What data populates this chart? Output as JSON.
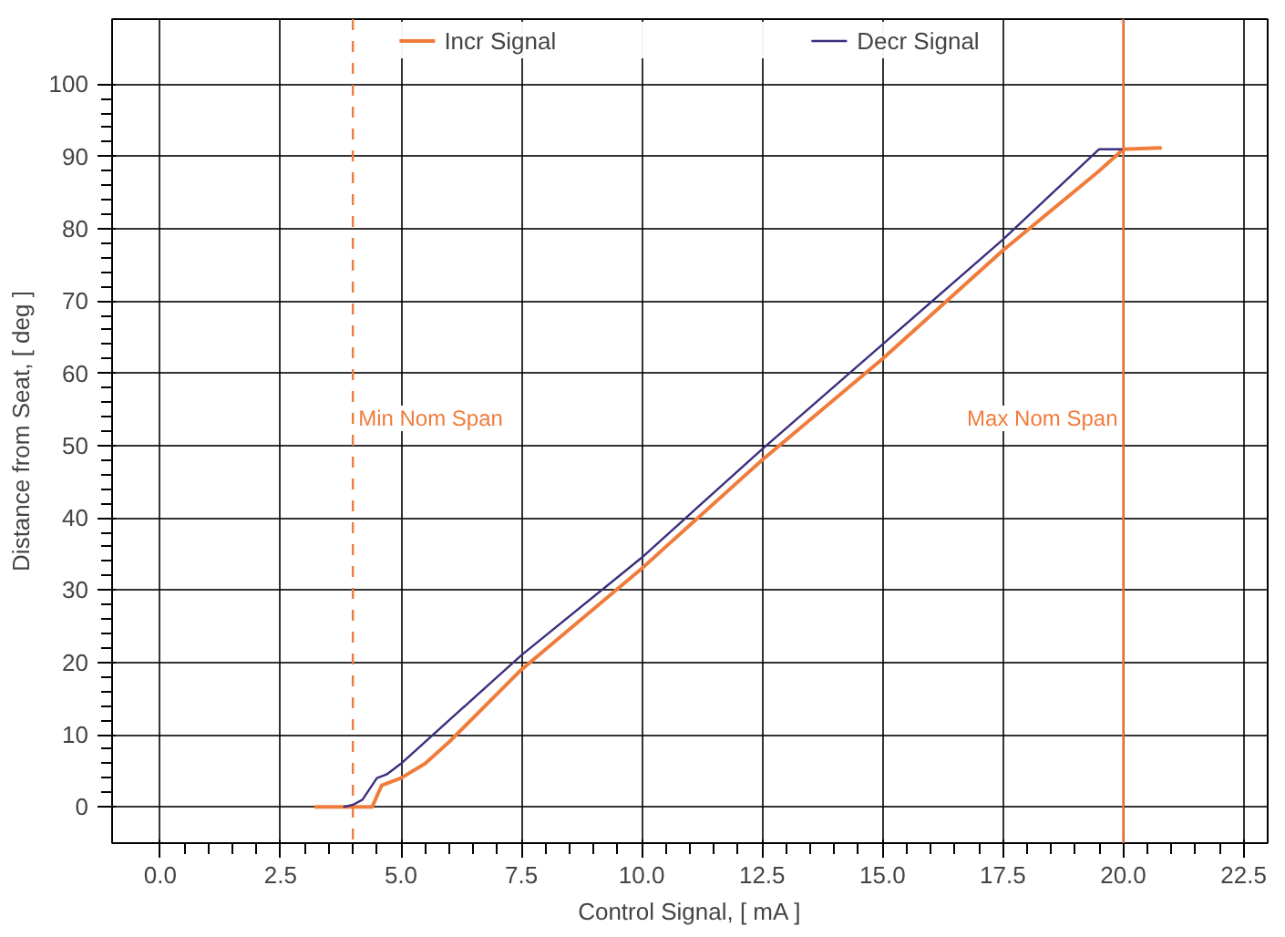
{
  "chart_data": {
    "type": "line",
    "xlabel": "Control Signal, [ mA ]",
    "ylabel": "Distance from Seat, [ deg ]",
    "xlim": [
      -1,
      23
    ],
    "ylim": [
      -5,
      109
    ],
    "xticks": [
      {
        "value": 0,
        "label": "0.0"
      },
      {
        "value": 2.5,
        "label": "2.5"
      },
      {
        "value": 5,
        "label": "5.0"
      },
      {
        "value": 7.5,
        "label": "7.5"
      },
      {
        "value": 10,
        "label": "10.0"
      },
      {
        "value": 12.5,
        "label": "12.5"
      },
      {
        "value": 15,
        "label": "15.0"
      },
      {
        "value": 17.5,
        "label": "17.5"
      },
      {
        "value": 20,
        "label": "20.0"
      },
      {
        "value": 22.5,
        "label": "22.5"
      }
    ],
    "yticks": [
      0,
      10,
      20,
      30,
      40,
      50,
      60,
      70,
      80,
      90,
      100
    ],
    "grid": true,
    "legend": "top",
    "marker": "none",
    "line_style": "solid",
    "series": [
      {
        "name": "Incr Signal",
        "color": "#f07c3c",
        "x": [
          3.2,
          4.0,
          4.4,
          4.6,
          5.0,
          5.5,
          6.0,
          7.5,
          10.0,
          10.5,
          12.5,
          15.0,
          17.5,
          19.5,
          20.0,
          20.8
        ],
        "values": [
          0,
          0,
          0,
          3,
          4,
          6,
          9,
          19,
          33,
          36,
          48,
          62,
          77,
          88,
          91,
          91.2
        ]
      },
      {
        "name": "Decr Signal",
        "color": "#3b2f7e",
        "x": [
          3.8,
          4.0,
          4.2,
          4.5,
          4.7,
          5.0,
          7.5,
          10.0,
          12.5,
          15.0,
          17.5,
          19.5,
          20.0
        ],
        "values": [
          0,
          0.3,
          1,
          4,
          4.5,
          6,
          21,
          34.5,
          49.5,
          64,
          78.5,
          91,
          91
        ]
      }
    ],
    "ref_lines": [
      {
        "axis": "x",
        "value": 4,
        "label": "Min Nom Span",
        "color": "#f07c3c",
        "line_style": "dashed"
      },
      {
        "axis": "x",
        "value": 20,
        "label": "Max Nom Span",
        "color": "#f07c3c",
        "line_style": "solid"
      }
    ]
  }
}
